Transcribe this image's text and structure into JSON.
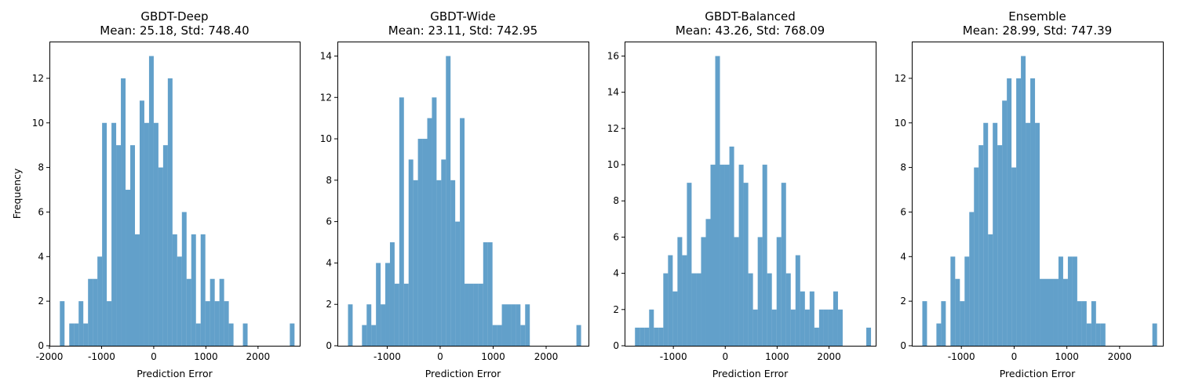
{
  "chart_data": [
    {
      "type": "bar",
      "title_line1": "GBDT-Deep",
      "title_line2": "Mean: 25.18, Std: 748.40",
      "xlabel": "Prediction Error",
      "ylabel": "Frequency",
      "xlim": [
        -2000,
        2800
      ],
      "ylim": [
        0,
        13.65
      ],
      "xticks": [
        -2000,
        -1000,
        0,
        1000,
        2000
      ],
      "xtick_labels": [
        "-2000",
        "-1000",
        "0",
        "1000",
        "2000"
      ],
      "yticks": [
        0,
        2,
        4,
        6,
        8,
        10,
        12
      ],
      "bins": {
        "start": -1800,
        "width": 90
      },
      "values": [
        2,
        0,
        1,
        1,
        2,
        1,
        3,
        3,
        4,
        10,
        2,
        10,
        9,
        12,
        7,
        9,
        5,
        11,
        10,
        13,
        10,
        8,
        9,
        12,
        5,
        4,
        6,
        3,
        5,
        1,
        5,
        2,
        3,
        2,
        3,
        2,
        1,
        0,
        0,
        1,
        0,
        0,
        0,
        0,
        0,
        0,
        0,
        0,
        0,
        1
      ]
    },
    {
      "type": "bar",
      "title_line1": "GBDT-Wide",
      "title_line2": "Mean: 23.11, Std: 742.95",
      "xlabel": "Prediction Error",
      "ylabel": "",
      "xlim": [
        -1940,
        2800
      ],
      "ylim": [
        0,
        14.7
      ],
      "xticks": [
        -1000,
        0,
        1000,
        2000
      ],
      "xtick_labels": [
        "-1000",
        "0",
        "1000",
        "2000"
      ],
      "yticks": [
        0,
        2,
        4,
        6,
        8,
        10,
        12,
        14
      ],
      "bins": {
        "start": -1740,
        "width": 88
      },
      "values": [
        2,
        0,
        0,
        1,
        2,
        1,
        4,
        2,
        4,
        5,
        3,
        12,
        3,
        9,
        8,
        10,
        10,
        11,
        12,
        8,
        9,
        14,
        8,
        6,
        11,
        3,
        3,
        3,
        3,
        5,
        5,
        1,
        1,
        2,
        2,
        2,
        2,
        1,
        2,
        0,
        0,
        0,
        0,
        0,
        0,
        0,
        0,
        0,
        0,
        1
      ]
    },
    {
      "type": "bar",
      "title_line1": "GBDT-Balanced",
      "title_line2": "Mean: 43.26, Std: 768.09",
      "xlabel": "Prediction Error",
      "ylabel": "",
      "xlim": [
        -1940,
        2900
      ],
      "ylim": [
        0,
        16.8
      ],
      "xticks": [
        -1000,
        0,
        1000,
        2000
      ],
      "xtick_labels": [
        "-1000",
        "0",
        "1000",
        "2000"
      ],
      "yticks": [
        0,
        2,
        4,
        6,
        8,
        10,
        12,
        14,
        16
      ],
      "bins": {
        "start": -1740,
        "width": 91
      },
      "values": [
        1,
        1,
        1,
        2,
        1,
        1,
        4,
        5,
        3,
        6,
        5,
        9,
        4,
        4,
        6,
        7,
        10,
        16,
        10,
        10,
        11,
        6,
        10,
        9,
        4,
        2,
        6,
        10,
        4,
        2,
        6,
        9,
        4,
        2,
        5,
        3,
        2,
        3,
        1,
        2,
        2,
        2,
        3,
        2,
        0,
        0,
        0,
        0,
        0,
        1
      ]
    },
    {
      "type": "bar",
      "title_line1": "Ensemble",
      "title_line2": "Mean: 28.99, Std: 747.39",
      "xlabel": "Prediction Error",
      "ylabel": "",
      "xlim": [
        -1940,
        2820
      ],
      "ylim": [
        0,
        13.65
      ],
      "xticks": [
        -1000,
        0,
        1000,
        2000
      ],
      "xtick_labels": [
        "-1000",
        "0",
        "1000",
        "2000"
      ],
      "yticks": [
        0,
        2,
        4,
        6,
        8,
        10,
        12
      ],
      "bins": {
        "start": -1740,
        "width": 89
      },
      "values": [
        2,
        0,
        0,
        1,
        2,
        0,
        4,
        3,
        2,
        4,
        6,
        8,
        9,
        10,
        5,
        10,
        9,
        11,
        12,
        8,
        12,
        13,
        10,
        12,
        10,
        3,
        3,
        3,
        3,
        4,
        3,
        4,
        4,
        2,
        2,
        1,
        2,
        1,
        1,
        0,
        0,
        0,
        0,
        0,
        0,
        0,
        0,
        0,
        0,
        1
      ]
    }
  ]
}
